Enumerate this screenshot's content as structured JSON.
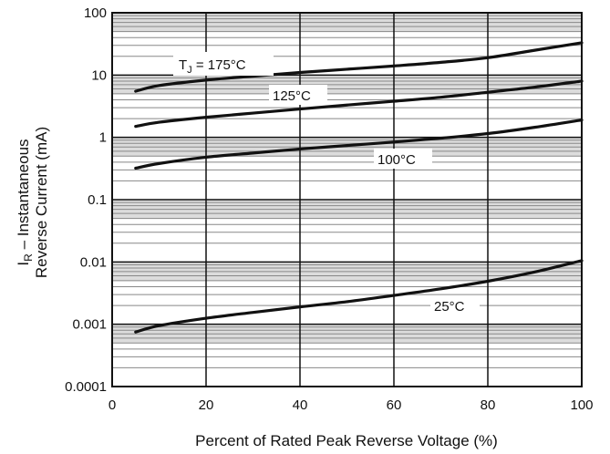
{
  "chart_data": {
    "type": "line",
    "title": "",
    "xlabel": "Percent of Rated Peak Reverse Voltage (%)",
    "ylabel_line1": "IR – Instantaneous",
    "ylabel_line1_parts": {
      "main": "I",
      "sub": "R",
      "rest": " – Instantaneous"
    },
    "ylabel_line2": "Reverse Current (mA)",
    "xlim": [
      0,
      100
    ],
    "ylim": [
      0.0001,
      100
    ],
    "yscale": "log",
    "grid": true,
    "x_ticks": [
      0,
      20,
      40,
      60,
      80,
      100
    ],
    "x_tick_labels": [
      "0",
      "20",
      "40",
      "60",
      "80",
      "100"
    ],
    "y_ticks": [
      0.0001,
      0.001,
      0.01,
      0.1,
      1,
      10,
      100
    ],
    "y_tick_labels": [
      "0.0001",
      "0.001",
      "0.01",
      "0.1",
      "1",
      "10",
      "100"
    ],
    "series": [
      {
        "name": "T_J = 175°C",
        "label_main": "T",
        "label_sub": "J",
        "label_rest": " = 175°C",
        "x": [
          5,
          10,
          20,
          30,
          40,
          50,
          60,
          70,
          80,
          90,
          100
        ],
        "values": [
          5.5,
          6.8,
          8.3,
          9.6,
          11.0,
          12.4,
          14.0,
          16.0,
          19.0,
          25.0,
          33.0
        ]
      },
      {
        "name": "125°C",
        "x": [
          5,
          10,
          20,
          30,
          40,
          50,
          60,
          70,
          80,
          90,
          100
        ],
        "values": [
          1.5,
          1.75,
          2.1,
          2.45,
          2.85,
          3.3,
          3.8,
          4.4,
          5.3,
          6.4,
          8.0
        ]
      },
      {
        "name": "100°C",
        "x": [
          5,
          10,
          20,
          30,
          40,
          50,
          60,
          70,
          80,
          90,
          100
        ],
        "values": [
          0.32,
          0.38,
          0.48,
          0.56,
          0.65,
          0.74,
          0.84,
          0.97,
          1.15,
          1.45,
          1.9
        ]
      },
      {
        "name": "25°C",
        "x": [
          5,
          10,
          20,
          30,
          40,
          50,
          60,
          70,
          80,
          90,
          100
        ],
        "values": [
          0.00075,
          0.00095,
          0.00125,
          0.00155,
          0.0019,
          0.0023,
          0.0029,
          0.0037,
          0.0049,
          0.0069,
          0.0105
        ]
      }
    ]
  },
  "colors": {
    "background": "#ffffff",
    "band_shade": "#dcdcdc",
    "minor_grid": "#888888",
    "major_grid": "#111111",
    "curve": "#111111"
  }
}
